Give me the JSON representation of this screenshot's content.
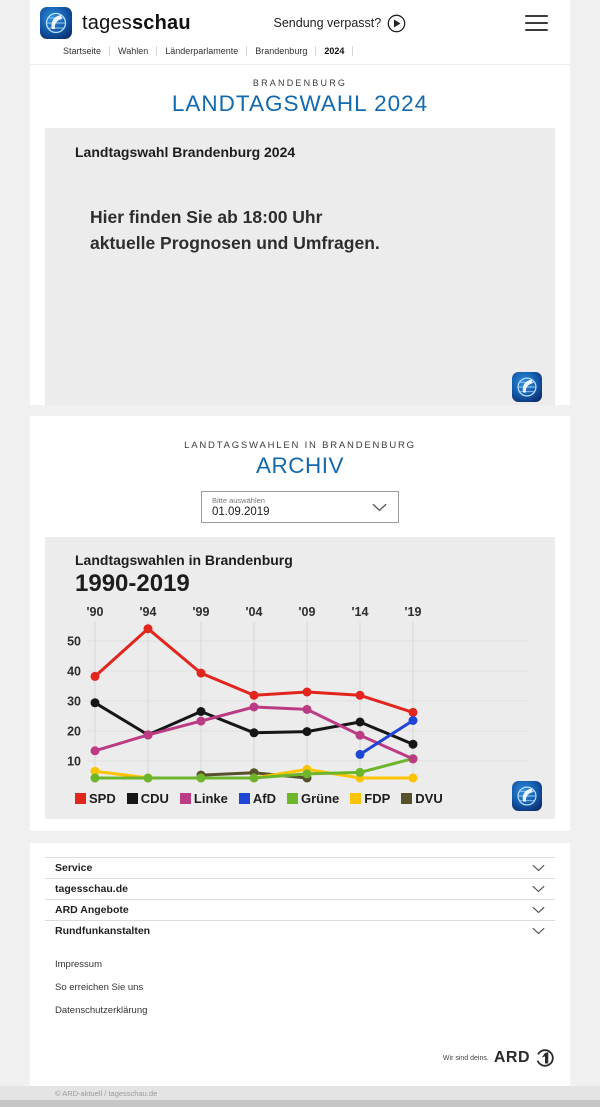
{
  "colors": {
    "accent_blue": "#1269ae",
    "card_gray": "#ececec",
    "page_gray": "#f0f0f0"
  },
  "header": {
    "logo_regular": "tages",
    "logo_bold": "schau",
    "broadcast_link": "Sendung verpasst?",
    "breadcrumb": [
      "Startseite",
      "Wahlen",
      "Länderparlamente",
      "Brandenburg",
      "2024"
    ]
  },
  "hero": {
    "kicker": "BRANDENBURG",
    "title": "LANDTAGSWAHL 2024"
  },
  "promo": {
    "heading": "Landtagswahl Brandenburg 2024",
    "message_line1": "Hier finden Sie ab 18:00 Uhr",
    "message_line2": "aktuelle Prognosen und Umfragen."
  },
  "archive": {
    "kicker": "LANDTAGSWAHLEN IN BRANDENBURG",
    "title": "ARCHIV",
    "select_label": "Bitte auswählen",
    "select_value": "01.09.2019"
  },
  "chart_card": {
    "heading": "Landtagswahlen in Brandenburg",
    "subheading": "1990-2019"
  },
  "chart_data": {
    "type": "line",
    "title": "Landtagswahlen in Brandenburg 1990-2019",
    "unit": "percent",
    "x_categories": [
      "'90",
      "'94",
      "'99",
      "'04",
      "'09",
      "'14",
      "'19"
    ],
    "years": [
      1990,
      1994,
      1999,
      2004,
      2009,
      2014,
      2019
    ],
    "yticks": [
      10,
      20,
      30,
      40,
      50
    ],
    "ylim": [
      0,
      57
    ],
    "grid": true,
    "legend_position": "bottom",
    "x_axis_position": "top",
    "draw_order": [
      "DVU",
      "FDP",
      "Grüne",
      "CDU",
      "Linke",
      "SPD",
      "AfD"
    ],
    "series": [
      {
        "name": "SPD",
        "color": "#e2251d",
        "values": [
          38.2,
          54.1,
          39.3,
          31.9,
          33.0,
          31.9,
          26.2
        ]
      },
      {
        "name": "CDU",
        "color": "#161616",
        "values": [
          29.4,
          18.7,
          26.5,
          19.4,
          19.8,
          23.0,
          15.6
        ]
      },
      {
        "name": "Linke",
        "color": "#bc3c84",
        "values": [
          13.4,
          18.7,
          23.3,
          28.0,
          27.2,
          18.6,
          10.7
        ]
      },
      {
        "name": "AfD",
        "color": "#1e46d5",
        "values": [
          null,
          null,
          null,
          null,
          null,
          12.2,
          23.5
        ]
      },
      {
        "name": "Grüne",
        "color": "#6db52b",
        "values": [
          2.8,
          2.9,
          1.9,
          3.6,
          5.7,
          6.2,
          10.8
        ]
      },
      {
        "name": "FDP",
        "color": "#fcc400",
        "values": [
          6.6,
          2.2,
          1.9,
          3.3,
          7.2,
          1.5,
          4.1
        ]
      },
      {
        "name": "DVU",
        "color": "#56512b",
        "values": [
          null,
          null,
          5.3,
          6.1,
          1.2,
          null,
          null
        ]
      }
    ]
  },
  "footer": {
    "accordions": [
      "Service",
      "tagesschau.de",
      "ARD Angebote",
      "Rundfunkanstalten"
    ],
    "links": [
      "Impressum",
      "So erreichen Sie uns",
      "Datenschutzerklärung"
    ],
    "ard_tagline": "Wir sind deins.",
    "ard_wordmark": "ARD",
    "copyright": "© ARD-aktuell / tagesschau.de"
  }
}
